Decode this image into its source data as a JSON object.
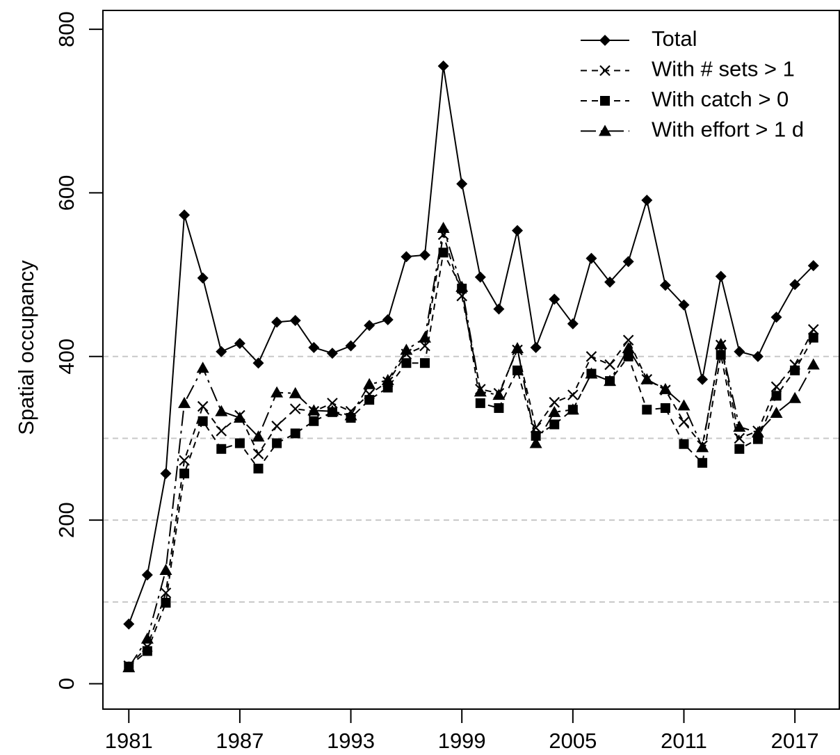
{
  "chart_data": {
    "type": "line",
    "y_label": "Spatial occupancy",
    "x": [
      1981,
      1982,
      1983,
      1984,
      1985,
      1986,
      1987,
      1988,
      1989,
      1990,
      1991,
      1992,
      1993,
      1994,
      1995,
      1996,
      1997,
      1998,
      1999,
      2000,
      2001,
      2002,
      2003,
      2004,
      2005,
      2006,
      2007,
      2008,
      2009,
      2010,
      2011,
      2012,
      2013,
      2014,
      2015,
      2016,
      2017,
      2018
    ],
    "series": [
      {
        "name": "Total",
        "color": "#000000",
        "dash": "solid",
        "marker": "diamond",
        "values": [
          73,
          133,
          257,
          573,
          496,
          406,
          416,
          392,
          442,
          444,
          411,
          404,
          413,
          438,
          445,
          522,
          524,
          755,
          611,
          497,
          458,
          554,
          411,
          470,
          440,
          520,
          491,
          516,
          591,
          487,
          463,
          372,
          498,
          406,
          400,
          448,
          488,
          511
        ]
      },
      {
        "name": "With # sets > 1",
        "color": "#000000",
        "dash": "dashed",
        "marker": "x",
        "values": [
          22,
          45,
          111,
          273,
          339,
          309,
          328,
          281,
          315,
          336,
          333,
          343,
          333,
          354,
          369,
          403,
          413,
          549,
          474,
          360,
          355,
          408,
          313,
          344,
          353,
          400,
          390,
          420,
          372,
          359,
          320,
          291,
          414,
          300,
          309,
          363,
          390,
          433
        ]
      },
      {
        "name": "With catch > 0",
        "color": "#000000",
        "dash": "dashed",
        "marker": "square",
        "values": [
          21,
          40,
          99,
          257,
          321,
          287,
          294,
          263,
          294,
          306,
          321,
          332,
          325,
          347,
          362,
          392,
          392,
          527,
          483,
          343,
          337,
          383,
          303,
          317,
          335,
          379,
          370,
          400,
          335,
          337,
          293,
          270,
          402,
          287,
          299,
          352,
          383,
          423
        ]
      },
      {
        "name": "With effort > 1 d",
        "color": "#000000",
        "dash": "dashdot",
        "marker": "triangle",
        "values": [
          20,
          55,
          139,
          343,
          386,
          333,
          325,
          302,
          356,
          355,
          334,
          333,
          328,
          366,
          371,
          408,
          423,
          557,
          485,
          357,
          353,
          410,
          294,
          332,
          335,
          379,
          370,
          410,
          372,
          360,
          340,
          289,
          415,
          314,
          307,
          331,
          349,
          390
        ]
      }
    ],
    "xlim": [
      1979.6,
      2019.4
    ],
    "ylim": [
      -31,
      823
    ],
    "xticks": [
      1981,
      1987,
      1993,
      1999,
      2005,
      2011,
      2017
    ],
    "yticks": [
      0,
      200,
      400,
      600,
      800
    ],
    "hlines": [
      100,
      200,
      300,
      400
    ],
    "legend": "top-right"
  }
}
